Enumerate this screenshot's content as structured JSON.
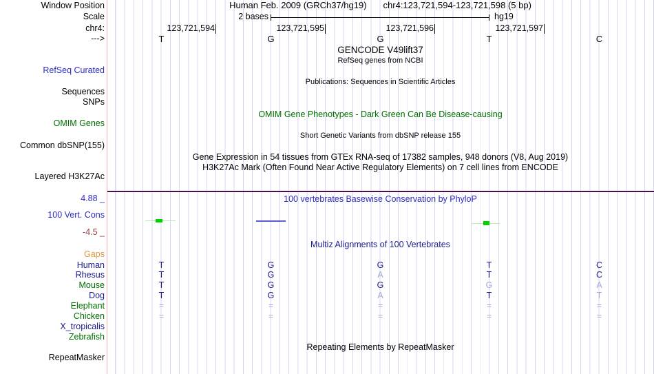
{
  "header": {
    "assembly": "Human Feb. 2009 (GRCh37/hg19)",
    "position": "chr4:123,721,594-123,721,598 (5 bp)"
  },
  "sidebar": {
    "window_position": "Window Position",
    "scale": "Scale",
    "chrom": "chr4:",
    "strand": "--->",
    "refseq_curated": "RefSeq Curated",
    "sequences": "Sequences",
    "snps": "SNPs",
    "omim_genes": "OMIM Genes",
    "common_dbsnp": "Common dbSNP(155)",
    "layered_h3k27ac": "Layered H3K27Ac",
    "cons_max": "4.88 _",
    "cons_track": "100 Vert. Cons",
    "cons_min": "-4.5 _",
    "gaps": "Gaps",
    "repeatmasker": "RepeatMasker"
  },
  "scalebar": {
    "label": "2 bases",
    "assembly": "hg19"
  },
  "ruler": {
    "ticks": [
      "123,721,594",
      "123,721,595",
      "123,721,596",
      "123,721,597"
    ]
  },
  "bases": [
    "T",
    "G",
    "G",
    "T",
    "C"
  ],
  "titles": {
    "gencode": "GENCODE V49lift37",
    "refseq_sub": "RefSeq genes from NCBI",
    "publications": "Publications: Sequences in Scientific Articles",
    "omim": "OMIM Gene Phenotypes - Dark Green Can Be Disease-causing",
    "dbsnp": "Short Genetic Variants from dbSNP release 155",
    "gtex": "Gene Expression in 54 tissues from GTEx RNA-seq of 17382 samples, 948 donors (V8, Aug 2019)",
    "h3k27ac": "H3K27Ac Mark (Often Found Near Active Regulatory Elements) on 7 cell lines from ENCODE",
    "phylop": "100 vertebrates Basewise Conservation by PhyloP",
    "multiz": "Multiz Alignments of 100 Vertebrates",
    "repeatmasker": "Repeating Elements by RepeatMasker"
  },
  "conservation": {
    "marks": [
      {
        "base": "123,721,594",
        "shape": "point",
        "color": "#00d200"
      },
      {
        "base": "123,721,595",
        "shape": "line",
        "color": "#5c5cd4"
      },
      {
        "base": "123,721,597",
        "shape": "point",
        "color": "#00d200"
      }
    ]
  },
  "multiz": {
    "species": [
      {
        "name": "Human",
        "label_color": "#1a1a8c",
        "bases": [
          {
            "char": "T",
            "state": "match"
          },
          {
            "char": "G",
            "state": "match"
          },
          {
            "char": "G",
            "state": "match"
          },
          {
            "char": "T",
            "state": "match"
          },
          {
            "char": "C",
            "state": "match"
          }
        ]
      },
      {
        "name": "Rhesus",
        "label_color": "#1a1a8c",
        "bases": [
          {
            "char": "T",
            "state": "match"
          },
          {
            "char": "G",
            "state": "match"
          },
          {
            "char": "A",
            "state": "diff"
          },
          {
            "char": "T",
            "state": "match"
          },
          {
            "char": "C",
            "state": "match"
          }
        ]
      },
      {
        "name": "Mouse",
        "label_color": "#006e00",
        "bases": [
          {
            "char": "T",
            "state": "match"
          },
          {
            "char": "G",
            "state": "match"
          },
          {
            "char": "G",
            "state": "match"
          },
          {
            "char": "G",
            "state": "diff"
          },
          {
            "char": "A",
            "state": "diff"
          }
        ]
      },
      {
        "name": "Dog",
        "label_color": "#1a1a8c",
        "bases": [
          {
            "char": "T",
            "state": "match"
          },
          {
            "char": "G",
            "state": "match"
          },
          {
            "char": "A",
            "state": "diff"
          },
          {
            "char": "T",
            "state": "match"
          },
          {
            "char": "T",
            "state": "diff"
          }
        ]
      },
      {
        "name": "Elephant",
        "label_color": "#006e00",
        "bases": [
          {
            "char": "=",
            "state": "gap"
          },
          {
            "char": "=",
            "state": "gap"
          },
          {
            "char": "=",
            "state": "gap"
          },
          {
            "char": "=",
            "state": "gap"
          },
          {
            "char": "=",
            "state": "gap"
          }
        ]
      },
      {
        "name": "Chicken",
        "label_color": "#006e00",
        "bases": [
          {
            "char": "=",
            "state": "gap"
          },
          {
            "char": "=",
            "state": "gap"
          },
          {
            "char": "=",
            "state": "gap"
          },
          {
            "char": "=",
            "state": "gap"
          },
          {
            "char": "=",
            "state": "gap"
          }
        ]
      },
      {
        "name": "X_tropicalis",
        "label_color": "#1a1a8c",
        "bases": [
          {
            "char": "",
            "state": "none"
          },
          {
            "char": "",
            "state": "none"
          },
          {
            "char": "",
            "state": "none"
          },
          {
            "char": "",
            "state": "none"
          },
          {
            "char": "",
            "state": "none"
          }
        ]
      },
      {
        "name": "Zebrafish",
        "label_color": "#006e00",
        "bases": [
          {
            "char": "",
            "state": "none"
          },
          {
            "char": "",
            "state": "none"
          },
          {
            "char": "",
            "state": "none"
          },
          {
            "char": "",
            "state": "none"
          },
          {
            "char": "",
            "state": "none"
          }
        ]
      }
    ]
  },
  "colors": {
    "base_match": "#1a1a8c",
    "base_diff": "#a3a8d8",
    "track_blue": "#2b2bc0",
    "track_green": "#006e00",
    "gaps_orange": "#dd9933",
    "cons_min_maroon": "#9b4141",
    "phylop_green": "#00d200",
    "phylop_green_light": "#b4efb4",
    "phylop_blue": "#5c5cd4",
    "divider_purple": "#4d0d4d",
    "guideline_red": "#ffa8a8",
    "gridline": "#d6d6f2"
  }
}
